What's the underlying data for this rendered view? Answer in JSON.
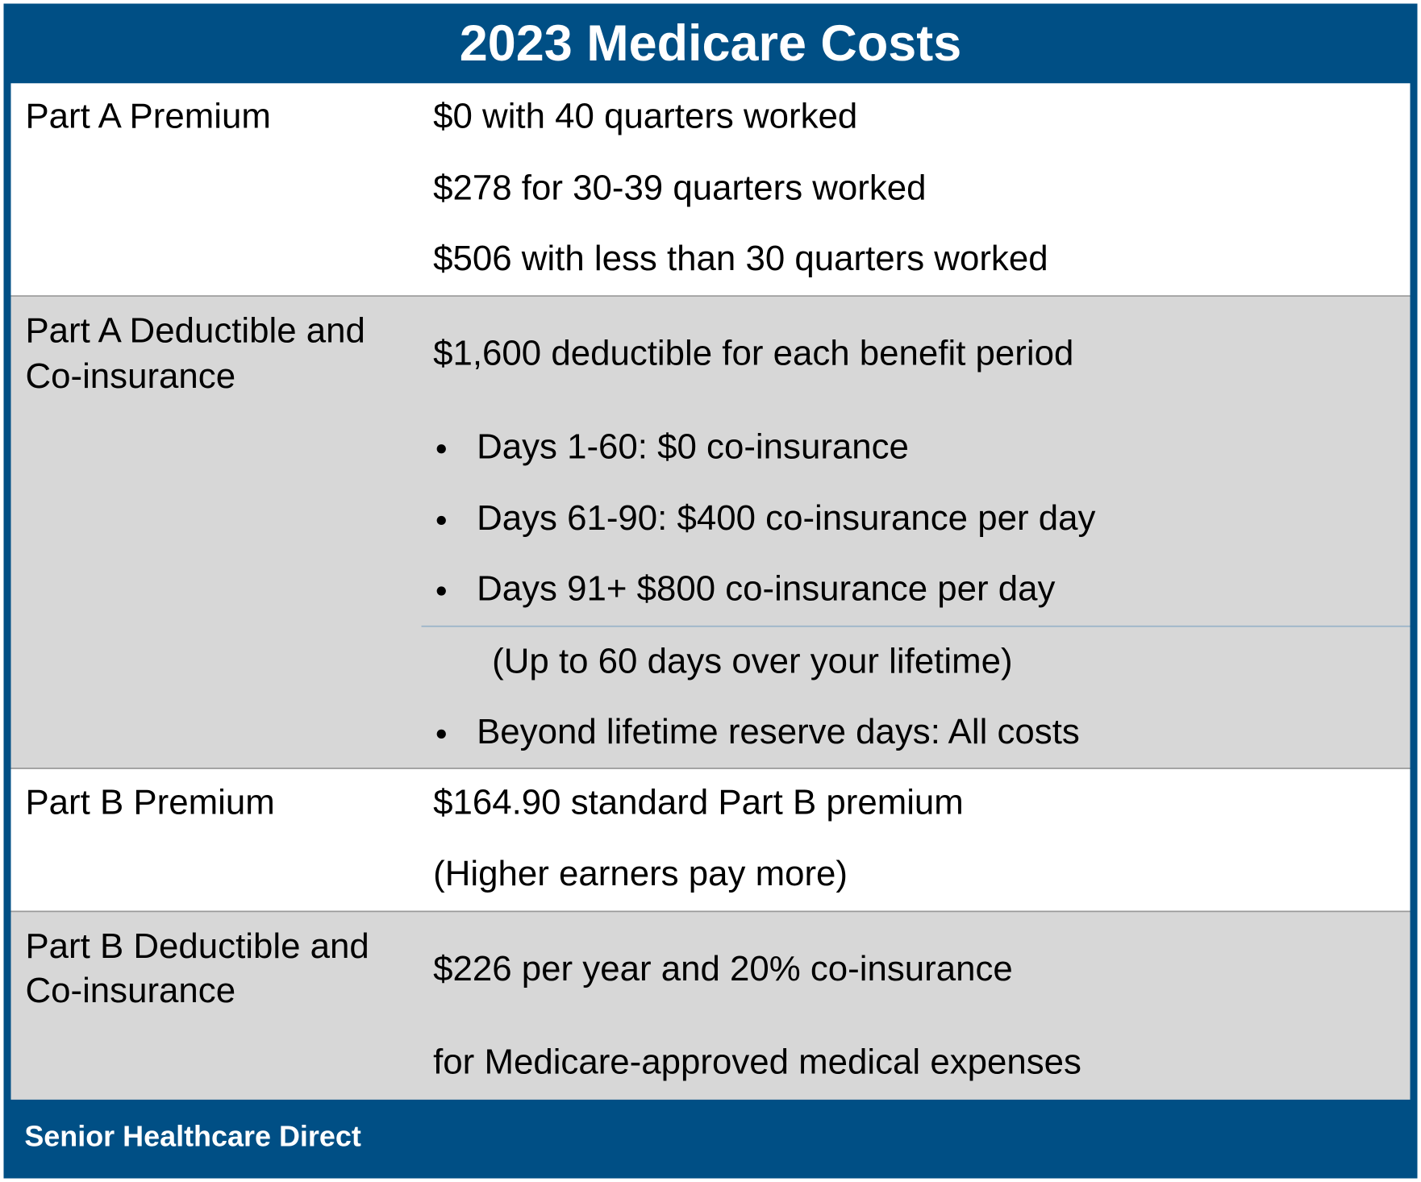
{
  "title": "2023 Medicare Costs",
  "rows": [
    {
      "label": [
        "Part A Premium"
      ],
      "details": [
        "$0 with 40 quarters worked",
        "$278 for 30-39 quarters worked",
        "$506 with less than 30 quarters worked"
      ]
    },
    {
      "label": [
        "Part A Deductible and",
        "Co-insurance"
      ],
      "details": [
        "$1,600 deductible for each benefit period"
      ],
      "bullets": [
        "Days 1-60: $0 co-insurance",
        "Days 61-90: $400 co-insurance per day",
        "Days 91+ $800 co-insurance per day"
      ],
      "note": "(Up to 60 days over your lifetime)",
      "final_bullet": "Beyond lifetime reserve days: All costs"
    },
    {
      "label": [
        "Part B Premium"
      ],
      "details": [
        "$164.90 standard Part B premium",
        "(Higher earners pay more)"
      ]
    },
    {
      "label": [
        "Part B Deductible and",
        "Co-insurance"
      ],
      "details": [
        "$226 per year and 20% co-insurance",
        "for Medicare-approved medical expenses"
      ]
    }
  ],
  "footer": "Senior Healthcare Direct"
}
